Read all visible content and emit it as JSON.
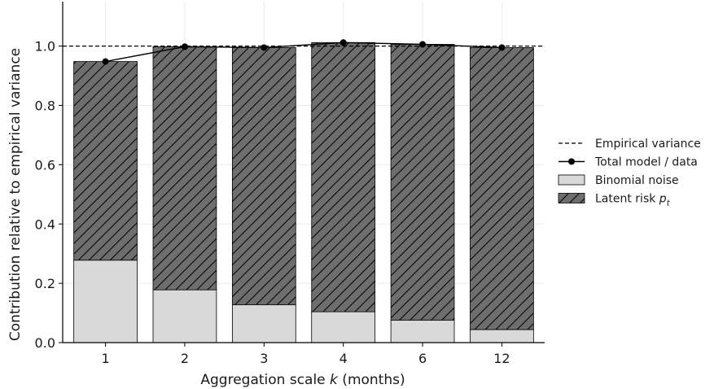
{
  "chart_data": {
    "type": "bar",
    "stacked": true,
    "title": "",
    "xlabel": "Aggregation scale k (months)",
    "xlabel_parts": {
      "prefix": "Aggregation scale ",
      "italic": "k",
      "suffix": " (months)"
    },
    "ylabel": "Contribution relative to empirical variance",
    "categories": [
      "1",
      "2",
      "3",
      "4",
      "6",
      "12"
    ],
    "ylim": [
      0,
      1.15
    ],
    "yticks": [
      "0.0",
      "0.2",
      "0.4",
      "0.6",
      "0.8",
      "1.0"
    ],
    "ytick_values": [
      0.0,
      0.2,
      0.4,
      0.6,
      0.8,
      1.0
    ],
    "grid": true,
    "legend_position": "right",
    "series": [
      {
        "name": "Binomial noise",
        "kind": "bar",
        "values": [
          0.278,
          0.178,
          0.128,
          0.104,
          0.076,
          0.044
        ],
        "color": "#d9d9d9"
      },
      {
        "name": "Latent risk p_t",
        "name_parts": {
          "prefix": "Latent risk ",
          "italic": "p",
          "sub": "t"
        },
        "kind": "bar-hatched",
        "values": [
          0.67,
          0.82,
          0.867,
          0.908,
          0.93,
          0.951
        ],
        "color": "#6e6e6e"
      },
      {
        "name": "Total model / data",
        "kind": "line",
        "values": [
          0.948,
          0.998,
          0.995,
          1.012,
          1.006,
          0.995
        ],
        "color": "#000000"
      },
      {
        "name": "Empirical variance",
        "kind": "hline",
        "value": 1.0,
        "color": "#000000"
      }
    ]
  }
}
